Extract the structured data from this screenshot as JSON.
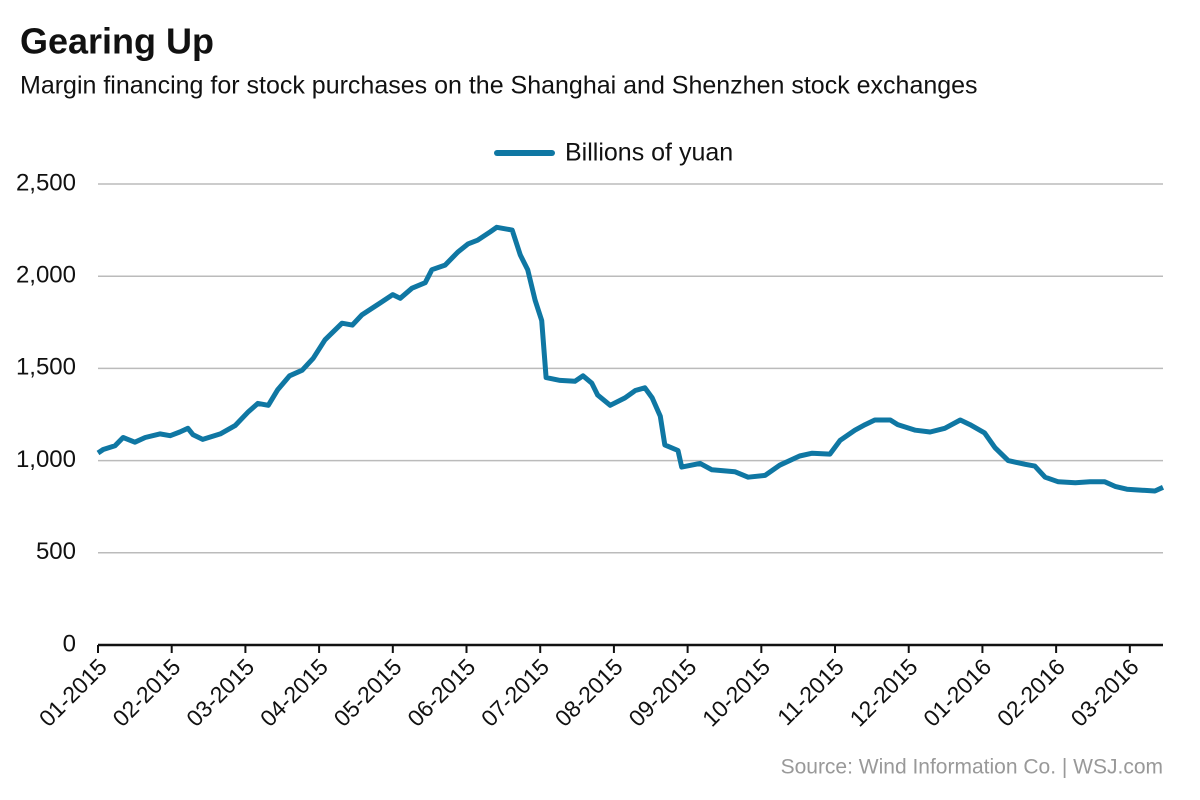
{
  "chart_data": {
    "type": "line",
    "title": "Gearing Up",
    "subtitle": "Margin financing for stock purchases on the Shanghai and Shenzhen stock exchanges",
    "source": "Source: Wind Information Co.  |  WSJ.com",
    "legend": "top",
    "grid": true,
    "x": [
      0,
      0.07,
      0.23,
      0.34,
      0.5,
      0.64,
      0.84,
      0.98,
      1.11,
      1.22,
      1.29,
      1.42,
      1.66,
      1.86,
      2.04,
      2.17,
      2.31,
      2.44,
      2.6,
      2.77,
      2.92,
      3.08,
      3.31,
      3.45,
      3.58,
      3.83,
      4.0,
      4.1,
      4.26,
      4.44,
      4.53,
      4.71,
      4.88,
      5.02,
      5.15,
      5.32,
      5.41,
      5.62,
      5.73,
      5.83,
      5.93,
      6.02,
      6.08,
      6.27,
      6.47,
      6.58,
      6.7,
      6.78,
      6.95,
      7.15,
      7.29,
      7.42,
      7.52,
      7.63,
      7.69,
      7.87,
      7.92,
      8.17,
      8.33,
      8.64,
      8.82,
      9.05,
      9.25,
      9.52,
      9.69,
      9.93,
      10.07,
      10.27,
      10.41,
      10.54,
      10.75,
      10.85,
      11.09,
      11.29,
      11.49,
      11.7,
      11.83,
      12.03,
      12.17,
      12.35,
      12.58,
      12.71,
      12.85,
      13.03,
      13.26,
      13.46,
      13.66,
      13.8,
      13.96,
      14.14,
      14.34,
      14.45
    ],
    "series": [
      {
        "name": "Billions of yuan",
        "color": "#0f77a3",
        "values": [
          1041,
          1060,
          1080,
          1125,
          1100,
          1125,
          1145,
          1135,
          1155,
          1175,
          1140,
          1115,
          1145,
          1190,
          1265,
          1310,
          1300,
          1385,
          1460,
          1490,
          1555,
          1655,
          1745,
          1735,
          1790,
          1855,
          1900,
          1880,
          1935,
          1965,
          2035,
          2060,
          2130,
          2175,
          2195,
          2240,
          2265,
          2250,
          2115,
          2035,
          1870,
          1760,
          1450,
          1435,
          1430,
          1460,
          1420,
          1355,
          1300,
          1340,
          1380,
          1395,
          1340,
          1240,
          1085,
          1055,
          965,
          985,
          950,
          940,
          910,
          920,
          975,
          1025,
          1040,
          1035,
          1110,
          1165,
          1195,
          1220,
          1220,
          1195,
          1165,
          1155,
          1175,
          1220,
          1195,
          1150,
          1070,
          1000,
          980,
          970,
          910,
          885,
          880,
          885,
          885,
          860,
          845,
          840,
          835,
          855
        ]
      }
    ],
    "xlim": [
      0,
      14.45
    ],
    "xticks": [
      {
        "value": 0,
        "label": "01-2015"
      },
      {
        "value": 1,
        "label": "02-2015"
      },
      {
        "value": 2,
        "label": "03-2015"
      },
      {
        "value": 3,
        "label": "04-2015"
      },
      {
        "value": 4,
        "label": "05-2015"
      },
      {
        "value": 5,
        "label": "06-2015"
      },
      {
        "value": 6,
        "label": "07-2015"
      },
      {
        "value": 7,
        "label": "08-2015"
      },
      {
        "value": 8,
        "label": "09-2015"
      },
      {
        "value": 9,
        "label": "10-2015"
      },
      {
        "value": 10,
        "label": "11-2015"
      },
      {
        "value": 11,
        "label": "12-2015"
      },
      {
        "value": 12,
        "label": "01-2016"
      },
      {
        "value": 13,
        "label": "02-2016"
      },
      {
        "value": 14,
        "label": "03-2016"
      }
    ],
    "ylim": [
      0,
      2500
    ],
    "yticks": [
      0,
      {
        "value": 500,
        "label": "500"
      },
      {
        "value": 1000,
        "label": "1,000"
      },
      {
        "value": 1500,
        "label": "1,500"
      },
      {
        "value": 2000,
        "label": "2,000"
      },
      {
        "value": 2500,
        "label": "2,500"
      }
    ]
  }
}
